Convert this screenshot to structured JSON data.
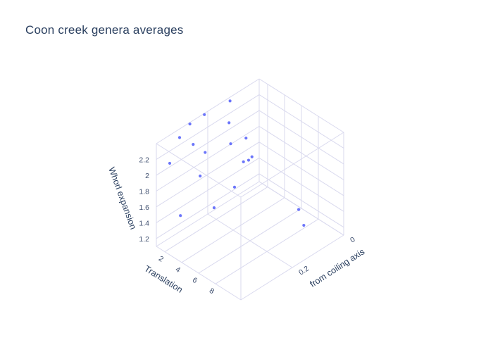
{
  "title": "Coon creek genera averages",
  "colors": {
    "background": "#ffffff",
    "title": "#2a3f5f",
    "axis_title": "#2a3f5f",
    "tick_label": "#3f4f6f",
    "grid": "#d9d9ee",
    "marker": "#636efa"
  },
  "chart_data": {
    "type": "scatter",
    "subtype": "3d-scatter",
    "title": "Coon creek genera averages",
    "legend": false,
    "grid": true,
    "axes": {
      "x": {
        "label": "Translation",
        "range": [
          1,
          11
        ],
        "ticks": [
          2,
          4,
          6,
          8
        ]
      },
      "y": {
        "label": "from coiling axis",
        "range": [
          0,
          0.4
        ],
        "ticks": [
          0,
          0.2
        ]
      },
      "z": {
        "label": "Whorl expansion",
        "range": [
          1.1,
          2.4
        ],
        "ticks": [
          1.2,
          1.4,
          1.6,
          1.8,
          2,
          2.2
        ]
      }
    },
    "point_fields": [
      "translation",
      "distance_from_coiling_axis",
      "whorl_expansion"
    ],
    "points": [
      [
        1.2,
        0.12,
        2.38
      ],
      [
        0.6,
        0.2,
        2.33
      ],
      [
        0.1,
        0.24,
        2.26
      ],
      [
        2.3,
        0.16,
        2.26
      ],
      [
        0.1,
        0.28,
        2.17
      ],
      [
        1.1,
        0.26,
        2.11
      ],
      [
        3.7,
        0.14,
        2.12
      ],
      [
        3.1,
        0.18,
        2.09
      ],
      [
        1.3,
        0.22,
        1.94
      ],
      [
        0.15,
        0.32,
        1.93
      ],
      [
        3.4,
        0.14,
        1.8
      ],
      [
        3.7,
        0.13,
        1.82
      ],
      [
        4.1,
        0.13,
        1.89
      ],
      [
        0.1,
        0.2,
        1.52
      ],
      [
        2.95,
        0.16,
        1.49
      ],
      [
        0.2,
        0.28,
        1.19
      ],
      [
        1.75,
        0.2,
        1.23
      ],
      [
        7.5,
        0.06,
        1.31
      ],
      [
        7.8,
        0.05,
        1.11
      ]
    ]
  }
}
